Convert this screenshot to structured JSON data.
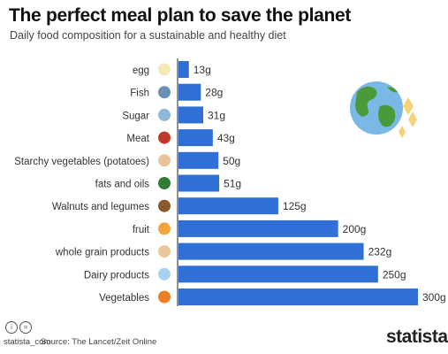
{
  "header": {
    "title": "The perfect meal plan to save the planet",
    "subtitle": "Daily food composition for a sustainable and healthy diet"
  },
  "chart_data": {
    "type": "bar",
    "orientation": "horizontal",
    "title": "The perfect meal plan to save the planet",
    "subtitle": "Daily food composition for a sustainable and healthy diet",
    "categories": [
      "egg",
      "Fish",
      "Sugar",
      "Meat",
      "Starchy vegetables (potatoes)",
      "fats and oils",
      "Walnuts and legumes",
      "fruit",
      "whole grain products",
      "Dairy products",
      "Vegetables"
    ],
    "values": [
      13,
      28,
      31,
      43,
      50,
      51,
      125,
      200,
      232,
      250,
      300
    ],
    "labels": [
      "13g",
      "28g",
      "31g",
      "43g",
      "50g",
      "51g",
      "125g",
      "200g",
      "232g",
      "250g",
      "300g"
    ],
    "unit": "g",
    "icons": [
      "egg-icon",
      "fish-icon",
      "sugar-icon",
      "meat-icon",
      "potato-icon",
      "oil-icon",
      "walnut-icon",
      "fruit-icon",
      "bread-icon",
      "milk-icon",
      "carrot-icon"
    ],
    "xlim": [
      0,
      300
    ],
    "bar_color": "#2f6fd6",
    "grid": false,
    "legend": "none"
  },
  "footer": {
    "source": "Source: The Lancet/Zeit Online",
    "handle": "statista_com",
    "brand": "statista"
  }
}
